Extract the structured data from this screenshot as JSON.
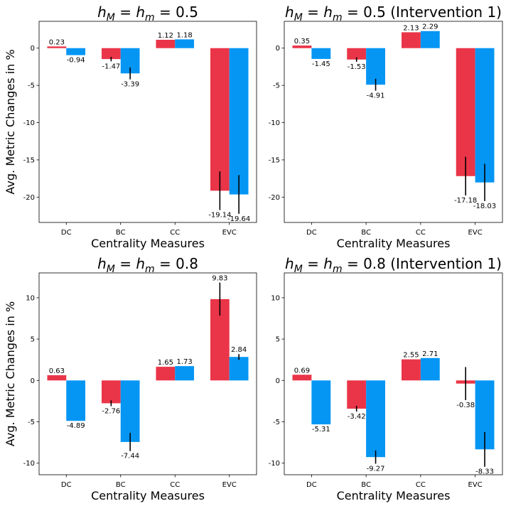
{
  "colors": {
    "red": "#ea3548",
    "blue": "#0596f4"
  },
  "chart_data": [
    {
      "type": "bar",
      "title_main": "h",
      "title_sub_a": "M",
      "title_sub_b": "m",
      "title_mid": " = h",
      "title_tail": " = 0.5",
      "xlabel": "Centrality Measures",
      "ylabel": "Avg. Metric Changes in %",
      "categories": [
        "DC",
        "BC",
        "CC",
        "EVC"
      ],
      "ylim": [
        -23.4,
        3.6
      ],
      "yticks": [
        0,
        -5,
        -10,
        -15,
        -20
      ],
      "series": [
        {
          "values": [
            0.23,
            -1.47,
            1.12,
            -19.14
          ],
          "err": [
            0.0,
            0.3,
            0.0,
            2.6
          ],
          "labels": [
            "0.23",
            "-1.47",
            "1.12",
            "-19.14"
          ]
        },
        {
          "values": [
            -0.94,
            -3.39,
            1.18,
            -19.64
          ],
          "err": [
            0.0,
            0.8,
            0.0,
            2.6
          ],
          "labels": [
            "-0.94",
            "-3.39",
            "1.18",
            "-19.64"
          ]
        }
      ]
    },
    {
      "type": "bar",
      "title_main": "h",
      "title_sub_a": "M",
      "title_sub_b": "m",
      "title_mid": " = h",
      "title_tail": " = 0.5 (Intervention 1)",
      "xlabel": "Centrality Measures",
      "ylabel": "",
      "categories": [
        "DC",
        "BC",
        "CC",
        "EVC"
      ],
      "ylim": [
        -23.4,
        3.6
      ],
      "yticks": [
        0,
        -5,
        -10,
        -15,
        -20
      ],
      "series": [
        {
          "values": [
            0.35,
            -1.53,
            2.13,
            -17.18
          ],
          "err": [
            0.0,
            0.3,
            0.0,
            2.6
          ],
          "labels": [
            "0.35",
            "-1.53",
            "2.13",
            "-17.18"
          ]
        },
        {
          "values": [
            -1.45,
            -4.91,
            2.29,
            -18.03
          ],
          "err": [
            0.0,
            0.8,
            0.0,
            2.5
          ],
          "labels": [
            "-1.45",
            "-4.91",
            "2.29",
            "-18.03"
          ]
        }
      ]
    },
    {
      "type": "bar",
      "title_main": "h",
      "title_sub_a": "M",
      "title_sub_b": "m",
      "title_mid": " = h",
      "title_tail": " = 0.8",
      "xlabel": "Centrality Measures",
      "ylabel": "Avg. Metric Changes in %",
      "categories": [
        "DC",
        "BC",
        "CC",
        "EVC"
      ],
      "ylim": [
        -11.4,
        13.0
      ],
      "yticks": [
        10,
        5,
        0,
        -5,
        -10
      ],
      "series": [
        {
          "values": [
            0.63,
            -2.76,
            1.65,
            9.83
          ],
          "err": [
            0.0,
            0.35,
            0.0,
            2.0
          ],
          "labels": [
            "0.63",
            "-2.76",
            "1.65",
            "9.83"
          ]
        },
        {
          "values": [
            -4.89,
            -7.44,
            1.73,
            2.84
          ],
          "err": [
            0.0,
            1.1,
            0.0,
            0.35
          ],
          "labels": [
            "-4.89",
            "-7.44",
            "1.73",
            "2.84"
          ]
        }
      ]
    },
    {
      "type": "bar",
      "title_main": "h",
      "title_sub_a": "M",
      "title_sub_b": "m",
      "title_mid": " = h",
      "title_tail": " = 0.8 (Intervention 1)",
      "xlabel": "Centrality Measures",
      "ylabel": "",
      "categories": [
        "DC",
        "BC",
        "CC",
        "EVC"
      ],
      "ylim": [
        -11.4,
        13.0
      ],
      "yticks": [
        10,
        5,
        0,
        -5,
        -10
      ],
      "series": [
        {
          "values": [
            0.69,
            -3.42,
            2.55,
            -0.38
          ],
          "err": [
            0.0,
            0.35,
            0.0,
            2.0
          ],
          "labels": [
            "0.69",
            "-3.42",
            "2.55",
            "-0.38"
          ]
        },
        {
          "values": [
            -5.31,
            -9.27,
            2.71,
            -8.33
          ],
          "err": [
            0.0,
            0.8,
            0.0,
            2.1
          ],
          "labels": [
            "-5.31",
            "-9.27",
            "2.71",
            "-8.33"
          ]
        }
      ]
    }
  ]
}
